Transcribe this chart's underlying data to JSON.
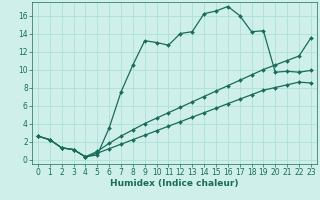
{
  "xlabel": "Humidex (Indice chaleur)",
  "ylabel": "",
  "xlim": [
    -0.5,
    23.5
  ],
  "ylim": [
    -0.5,
    17.5
  ],
  "xticks": [
    0,
    1,
    2,
    3,
    4,
    5,
    6,
    7,
    8,
    9,
    10,
    11,
    12,
    13,
    14,
    15,
    16,
    17,
    18,
    19,
    20,
    21,
    22,
    23
  ],
  "yticks": [
    0,
    2,
    4,
    6,
    8,
    10,
    12,
    14,
    16
  ],
  "background_color": "#cff0ea",
  "grid_color": "#a8ddd6",
  "line_color": "#1a6b5a",
  "line1_x": [
    0,
    1,
    2,
    3,
    4,
    5,
    6,
    7,
    8,
    9,
    10,
    11,
    12,
    13,
    14,
    15,
    16,
    17,
    18,
    19,
    20,
    21,
    22,
    23
  ],
  "line1_y": [
    2.6,
    2.2,
    1.3,
    1.1,
    0.3,
    0.5,
    3.5,
    7.5,
    10.5,
    13.2,
    13.0,
    12.7,
    14.0,
    14.2,
    16.2,
    16.5,
    17.0,
    16.0,
    14.2,
    14.3,
    9.7,
    9.8,
    9.7,
    9.9
  ],
  "line2_x": [
    0,
    1,
    2,
    3,
    4,
    5,
    6,
    7,
    8,
    9,
    10,
    11,
    12,
    13,
    14,
    15,
    16,
    17,
    18,
    19,
    20,
    21,
    22,
    23
  ],
  "line2_y": [
    2.6,
    2.2,
    1.3,
    1.1,
    0.3,
    0.9,
    1.8,
    2.6,
    3.3,
    4.0,
    4.6,
    5.2,
    5.8,
    6.4,
    7.0,
    7.6,
    8.2,
    8.8,
    9.4,
    10.0,
    10.5,
    11.0,
    11.5,
    13.5
  ],
  "line3_x": [
    0,
    1,
    2,
    3,
    4,
    5,
    6,
    7,
    8,
    9,
    10,
    11,
    12,
    13,
    14,
    15,
    16,
    17,
    18,
    19,
    20,
    21,
    22,
    23
  ],
  "line3_y": [
    2.6,
    2.2,
    1.3,
    1.1,
    0.3,
    0.7,
    1.2,
    1.7,
    2.2,
    2.7,
    3.2,
    3.7,
    4.2,
    4.7,
    5.2,
    5.7,
    6.2,
    6.7,
    7.2,
    7.7,
    8.0,
    8.3,
    8.6,
    8.5
  ],
  "marker": "D",
  "marker_size": 2.0,
  "line_width": 0.9,
  "tick_fontsize": 5.5,
  "xlabel_fontsize": 6.5
}
